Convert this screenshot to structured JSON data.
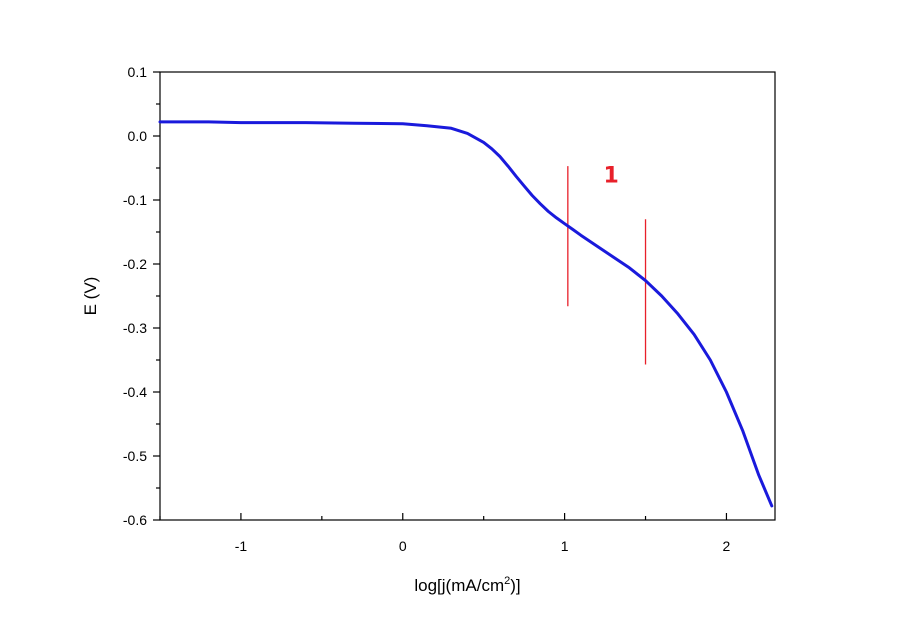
{
  "chart_data": {
    "type": "line",
    "xlabel_main": "log[j(mA/cm",
    "xlabel_sup": "2",
    "xlabel_end": ")]",
    "ylabel": "E (V)",
    "xlim": [
      -1.5,
      2.3
    ],
    "ylim": [
      -0.6,
      0.1
    ],
    "x_ticks": [
      -1,
      0,
      1,
      2
    ],
    "x_tick_labels": [
      "-1",
      "0",
      "1",
      "2"
    ],
    "x_minor_ticks": [
      -1.5,
      -0.5,
      0.5,
      1.5
    ],
    "y_ticks": [
      0.1,
      0.0,
      -0.1,
      -0.2,
      -0.3,
      -0.4,
      -0.5,
      -0.6
    ],
    "y_tick_labels": [
      "0.1",
      "0.0",
      "-0.1",
      "-0.2",
      "-0.3",
      "-0.4",
      "-0.5",
      "-0.6"
    ],
    "y_minor_ticks": [
      0.05,
      -0.05,
      -0.15,
      -0.25,
      -0.35,
      -0.45,
      -0.55
    ],
    "series": [
      {
        "color": "#1a1adc",
        "x": [
          -1.5,
          -1.2,
          -1.0,
          -0.6,
          -0.3,
          0.0,
          0.15,
          0.3,
          0.4,
          0.5,
          0.55,
          0.6,
          0.65,
          0.7,
          0.75,
          0.8,
          0.85,
          0.9,
          0.95,
          1.0,
          1.05,
          1.1,
          1.2,
          1.3,
          1.4,
          1.5,
          1.6,
          1.7,
          1.8,
          1.9,
          2.0,
          2.1,
          2.2,
          2.28
        ],
        "y": [
          0.022,
          0.022,
          0.021,
          0.021,
          0.02,
          0.019,
          0.016,
          0.012,
          0.004,
          -0.01,
          -0.02,
          -0.032,
          -0.047,
          -0.063,
          -0.078,
          -0.093,
          -0.106,
          -0.118,
          -0.128,
          -0.137,
          -0.146,
          -0.155,
          -0.172,
          -0.189,
          -0.206,
          -0.226,
          -0.25,
          -0.278,
          -0.31,
          -0.35,
          -0.4,
          -0.46,
          -0.53,
          -0.578
        ]
      }
    ],
    "markers": [
      {
        "x": 1.02,
        "y_top": -0.047,
        "y_bottom": -0.266
      },
      {
        "x": 1.5,
        "y_top": -0.13,
        "y_bottom": -0.357
      }
    ],
    "marker_color": "#e8202a",
    "annotation": {
      "text": "1",
      "x": 1.24,
      "y": -0.06
    }
  }
}
